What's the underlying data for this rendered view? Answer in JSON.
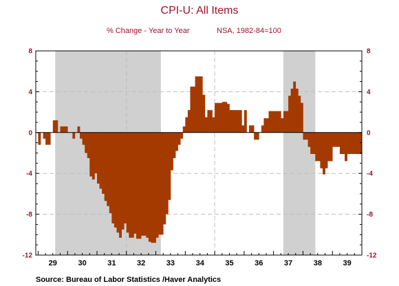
{
  "chart_data": {
    "type": "bar",
    "title": "CPI-U: All Items",
    "subtitle_left": "% Change - Year to Year",
    "subtitle_right": "NSA, 1982-84=100",
    "source": "Source:  Bureau of Labor Statistics /Haver Analytics",
    "x_tick_labels": [
      "29",
      "30",
      "31",
      "32",
      "33",
      "34",
      "35",
      "36",
      "37",
      "38",
      "39"
    ],
    "y_ticks": [
      8,
      4,
      0,
      -4,
      -8,
      -12
    ],
    "ylim": [
      -12,
      8
    ],
    "x_range": [
      1928.92,
      1940.0
    ],
    "grid": "dashed",
    "colors": {
      "bars": "#a43a00",
      "recession": "#d0d0d0",
      "text_accent": "#a0102a"
    },
    "recession_periods": [
      {
        "start": 1929.58,
        "end": 1933.17
      },
      {
        "start": 1937.33,
        "end": 1938.42
      }
    ],
    "monthly_values": {
      "1929": [
        -1.2,
        0.0,
        -0.6,
        -1.2,
        -1.2,
        0.0,
        1.2,
        1.2,
        0.0,
        0.6,
        0.6,
        0.6
      ],
      "1930": [
        0.0,
        0.0,
        -0.6,
        0.0,
        0.6,
        -0.6,
        -1.2,
        -2.0,
        -2.5,
        -4.3,
        -4.6,
        -4.0
      ],
      "1931": [
        -5.0,
        -5.5,
        -6.0,
        -6.7,
        -7.2,
        -7.9,
        -8.9,
        -9.3,
        -9.8,
        -10.3,
        -9.5,
        -8.9
      ],
      "1932": [
        -9.8,
        -10.3,
        -10.3,
        -9.9,
        -10.4,
        -10.4,
        -10.1,
        -10.1,
        -10.3,
        -10.7,
        -10.8,
        -10.8
      ],
      "1933": [
        -10.3,
        -10.0,
        -10.0,
        -9.0,
        -8.0,
        -6.6,
        -3.7,
        -2.5,
        -1.8,
        -1.2,
        -0.6,
        0.6
      ],
      "1934": [
        1.5,
        2.2,
        4.5,
        4.5,
        5.5,
        5.5,
        5.5,
        3.7,
        1.5,
        2.2,
        2.2,
        1.5
      ],
      "1935": [
        2.9,
        2.9,
        2.9,
        3.0,
        3.0,
        2.8,
        2.2,
        2.2,
        2.2,
        2.2,
        2.2,
        0.7
      ],
      "1936": [
        2.2,
        0.0,
        0.7,
        0.7,
        -0.7,
        -0.7,
        0.0,
        0.7,
        1.4,
        1.4,
        2.1,
        2.1
      ],
      "1937": [
        2.1,
        2.1,
        2.1,
        1.4,
        2.1,
        2.1,
        3.6,
        4.3,
        5.0,
        4.3,
        3.6,
        2.9
      ],
      "1938": [
        -0.7,
        -0.7,
        -1.4,
        -2.1,
        -2.1,
        -2.8,
        -2.8,
        -3.5,
        -4.1,
        -3.5,
        -2.8,
        -2.8
      ],
      "1939": [
        -1.4,
        -1.4,
        -1.4,
        -2.1,
        -2.1,
        -2.8,
        -2.1,
        -2.1,
        -2.1,
        -2.1,
        -2.1,
        -2.1
      ]
    }
  }
}
